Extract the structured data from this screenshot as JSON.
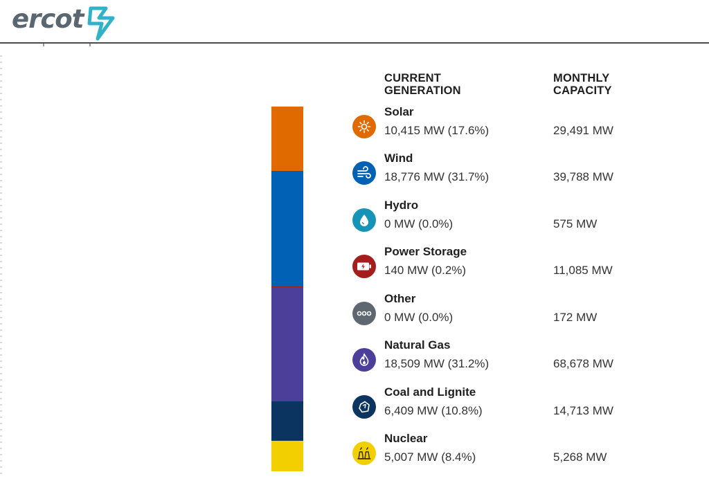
{
  "header": {
    "brand": "ercot"
  },
  "table": {
    "col_current_line1": "CURRENT",
    "col_current_line2": "GENERATION",
    "col_capacity_line1": "MONTHLY",
    "col_capacity_line2": "CAPACITY"
  },
  "sources": [
    {
      "name": "Solar",
      "generation": "10,415 MW (17.6%)",
      "capacity": "29,491 MW",
      "share_pct": 17.6,
      "color": "#e06a00",
      "icon": "sun-icon"
    },
    {
      "name": "Wind",
      "generation": "18,776 MW (31.7%)",
      "capacity": "39,788 MW",
      "share_pct": 31.7,
      "color": "#0061b5",
      "icon": "wind-icon"
    },
    {
      "name": "Hydro",
      "generation": "0 MW (0.0%)",
      "capacity": "575 MW",
      "share_pct": 0.0,
      "color": "#1594b8",
      "icon": "water-drop-icon"
    },
    {
      "name": "Power Storage",
      "generation": "140 MW (0.2%)",
      "capacity": "11,085 MW",
      "share_pct": 0.2,
      "color": "#a51d1d",
      "icon": "battery-icon"
    },
    {
      "name": "Other",
      "generation": "0 MW (0.0%)",
      "capacity": "172 MW",
      "share_pct": 0.0,
      "color": "#5f6770",
      "icon": "dots-icon"
    },
    {
      "name": "Natural Gas",
      "generation": "18,509 MW (31.2%)",
      "capacity": "68,678 MW",
      "share_pct": 31.2,
      "color": "#4c3f9a",
      "icon": "flame-icon"
    },
    {
      "name": "Coal and Lignite",
      "generation": "6,409 MW (10.8%)",
      "capacity": "14,713 MW",
      "share_pct": 10.8,
      "color": "#0b3461",
      "icon": "coal-icon"
    },
    {
      "name": "Nuclear",
      "generation": "5,007 MW (8.4%)",
      "capacity": "5,268 MW",
      "share_pct": 8.4,
      "color": "#f2cf00",
      "icon": "nuclear-plant-icon"
    }
  ]
}
